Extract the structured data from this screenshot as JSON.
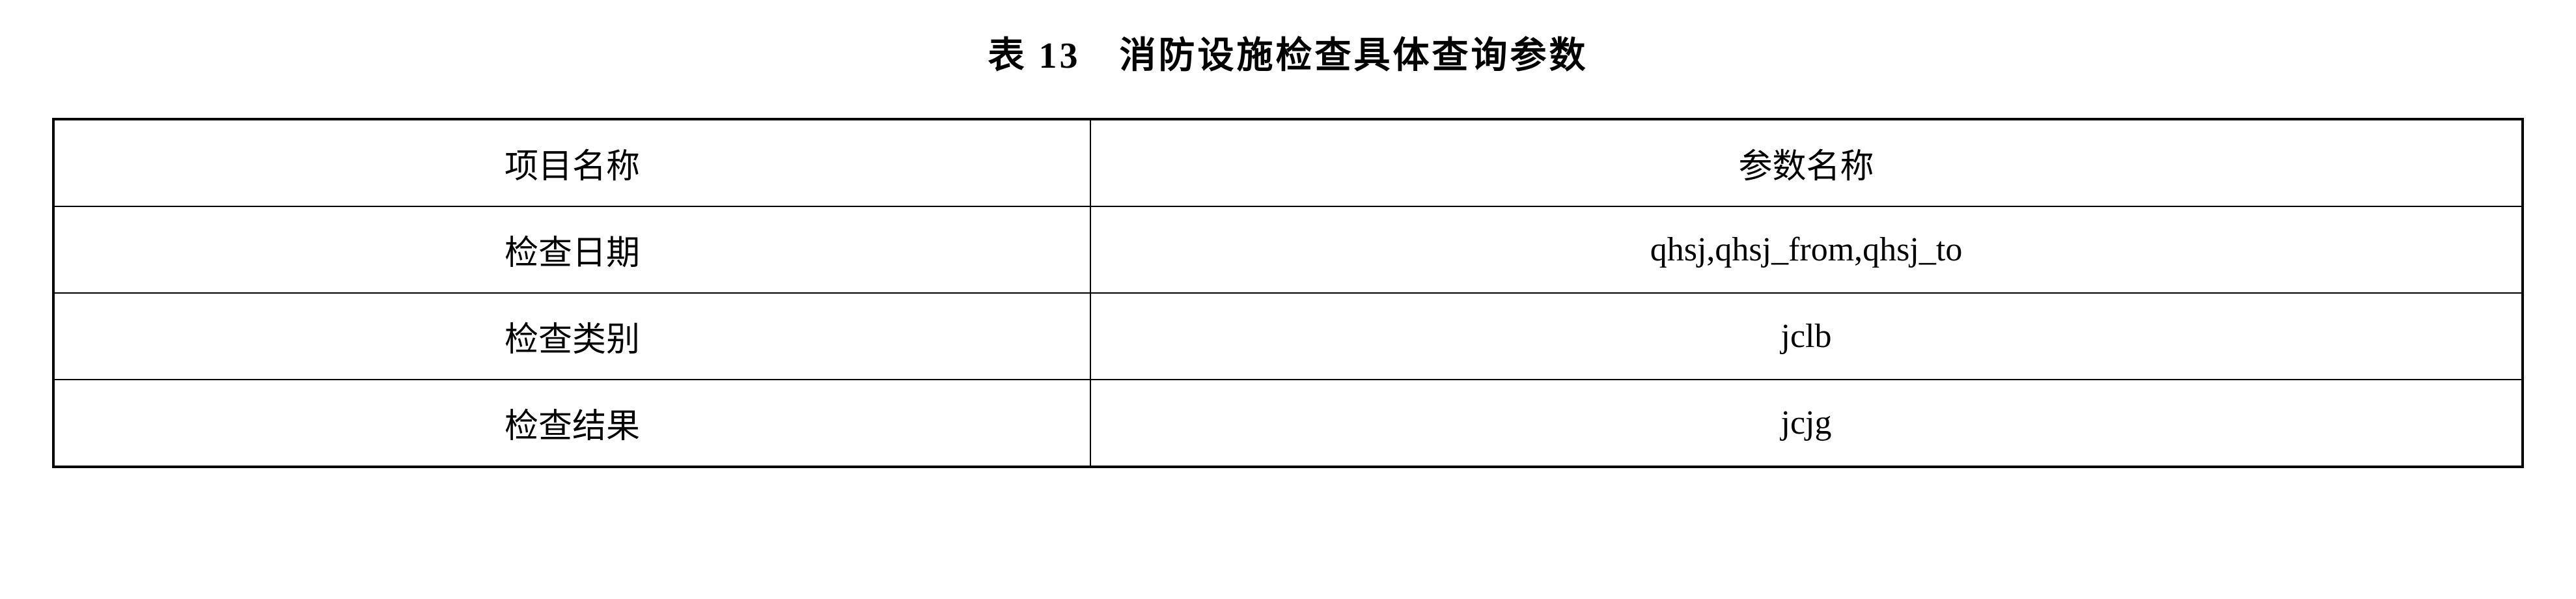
{
  "title": "表 13　消防设施检查具体查询参数",
  "table": {
    "columns": [
      "项目名称",
      "参数名称"
    ],
    "rows": [
      {
        "name": "检查日期",
        "param": "qhsj,qhsj_from,qhsj_to"
      },
      {
        "name": "检查类别",
        "param": "jclb"
      },
      {
        "name": "检查结果",
        "param": "jcjg"
      }
    ],
    "border_color": "#000000",
    "background_color": "#ffffff",
    "text_color": "#000000",
    "title_fontsize": 56,
    "cell_fontsize": 52,
    "col_widths": [
      "42%",
      "58%"
    ]
  }
}
